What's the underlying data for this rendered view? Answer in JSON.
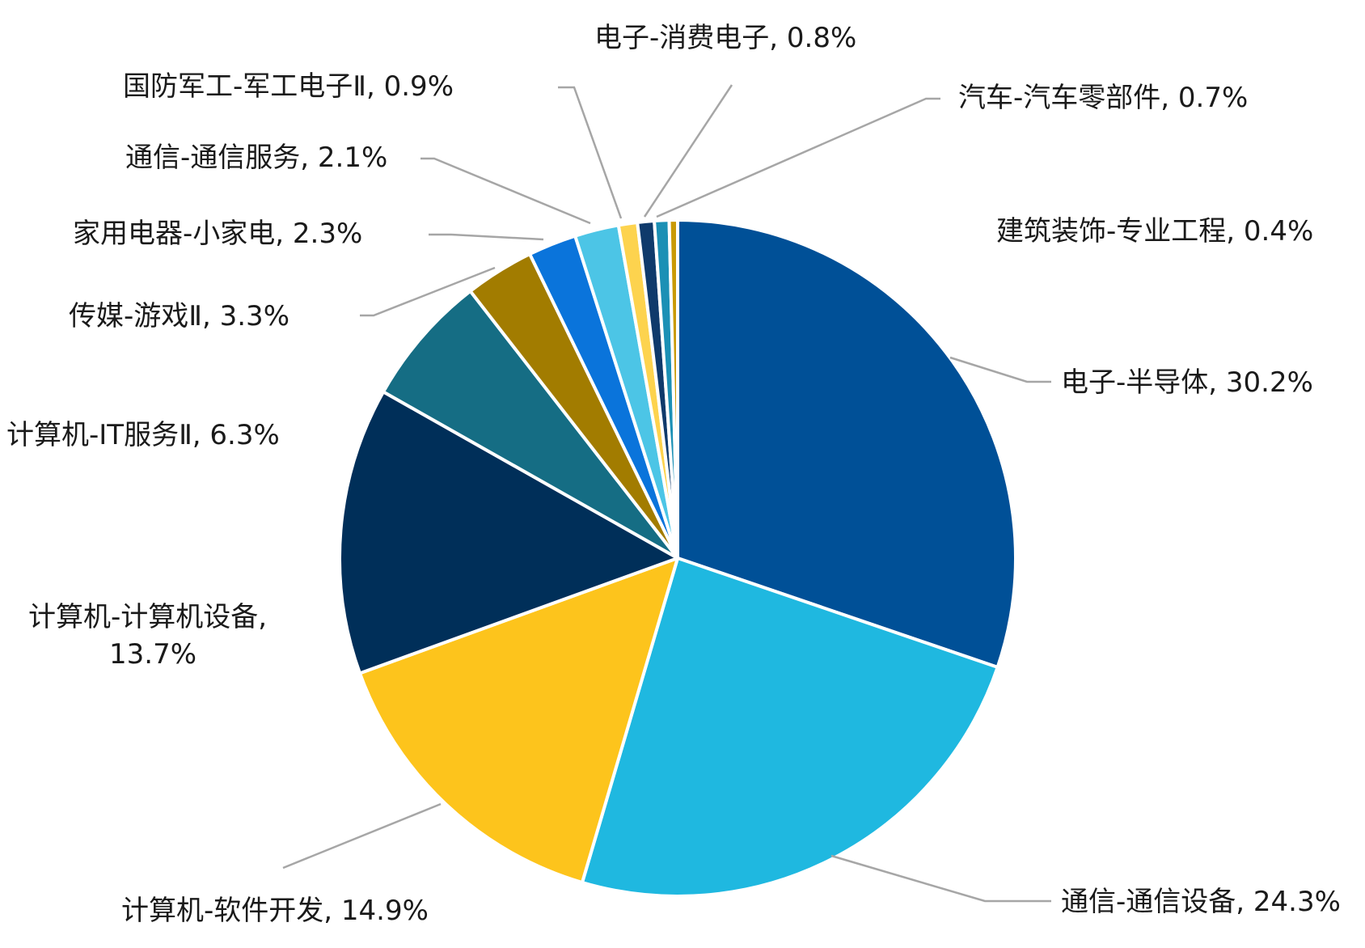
{
  "chart_data": {
    "type": "pie",
    "title": "",
    "start": "12 o'clock",
    "direction": "clockwise",
    "legend": "none",
    "slices": [
      {
        "label": "电子-半导体",
        "value": 30.2,
        "value_label": "30.2%",
        "color": "#005097"
      },
      {
        "label": "通信-通信设备",
        "value": 24.3,
        "value_label": "24.3%",
        "color": "#1fb8e0"
      },
      {
        "label": "计算机-软件开发",
        "value": 14.9,
        "value_label": "14.9%",
        "color": "#fdc41c"
      },
      {
        "label": "计算机-计算机设备",
        "value": 13.7,
        "value_label": "13.7%",
        "color": "#002f59"
      },
      {
        "label": "计算机-IT服务Ⅱ",
        "value": 6.3,
        "value_label": "6.3%",
        "color": "#156d84"
      },
      {
        "label": "传媒-游戏Ⅱ",
        "value": 3.3,
        "value_label": "3.3%",
        "color": "#a27c00"
      },
      {
        "label": "家用电器-小家电",
        "value": 2.3,
        "value_label": "2.3%",
        "color": "#0a74db"
      },
      {
        "label": "通信-通信服务",
        "value": 2.1,
        "value_label": "2.1%",
        "color": "#4cc5e6"
      },
      {
        "label": "国防军工-军工电子Ⅱ",
        "value": 0.9,
        "value_label": "0.9%",
        "color": "#fdd34e"
      },
      {
        "label": "电子-消费电子",
        "value": 0.8,
        "value_label": "0.8%",
        "color": "#0f3a6b"
      },
      {
        "label": "汽车-汽车零部件",
        "value": 0.7,
        "value_label": "0.7%",
        "color": "#1b90b5"
      },
      {
        "label": "建筑装饰-专业工程",
        "value": 0.4,
        "value_label": "0.4%",
        "color": "#c99a06"
      }
    ]
  }
}
